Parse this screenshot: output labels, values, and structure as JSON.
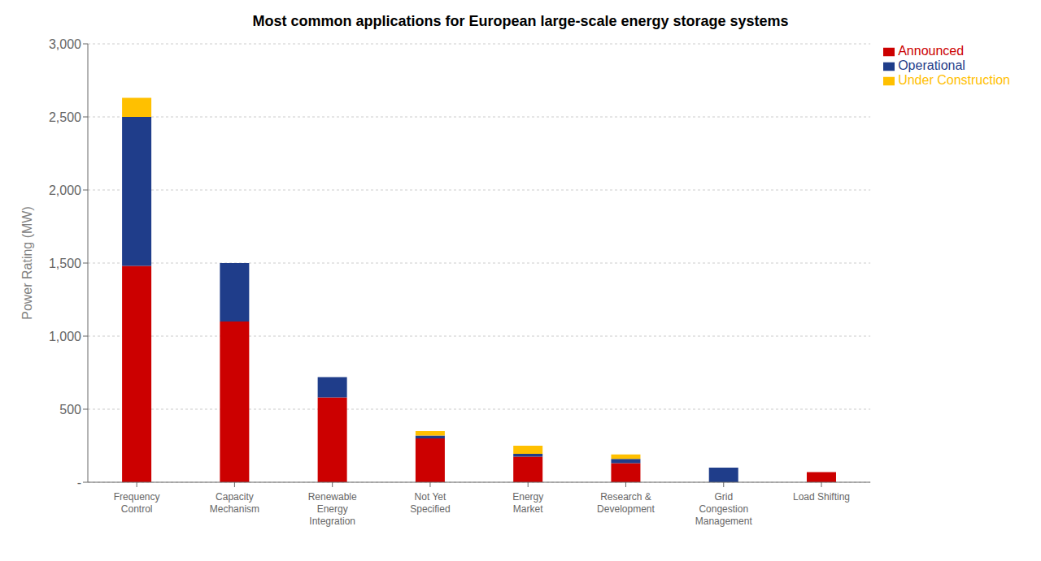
{
  "chart_data": {
    "type": "bar",
    "title": "Most common applications for European large-scale energy storage systems",
    "ylabel": "Power Rating (MW)",
    "categories": [
      "Frequency\nControl",
      "Capacity\nMechanism",
      "Renewable\nEnergy\nIntegration",
      "Not Yet\nSpecified",
      "Energy\nMarket",
      "Research &\nDevelopment",
      "Grid\nCongestion\nManagement",
      "Load Shifting"
    ],
    "series": [
      {
        "name": "Announced",
        "color": "#cc0000",
        "values": [
          1480,
          1100,
          580,
          300,
          175,
          130,
          0,
          70
        ]
      },
      {
        "name": "Operational",
        "color": "#1f3d8a",
        "values": [
          1020,
          400,
          140,
          20,
          20,
          30,
          100,
          0
        ]
      },
      {
        "name": "Under Construction",
        "color": "#ffc000",
        "values": [
          130,
          0,
          0,
          30,
          55,
          30,
          0,
          0
        ]
      }
    ],
    "stacked": true,
    "ylim": [
      0,
      3000
    ],
    "yticks": [
      {
        "value": 0,
        "label": "-"
      },
      500,
      {
        "value": 1000,
        "label": "1,000"
      },
      {
        "value": 1500,
        "label": "1,500"
      },
      {
        "value": 2000,
        "label": "2,000"
      },
      {
        "value": 2500,
        "label": "2,500"
      },
      {
        "value": 3000,
        "label": "3,000"
      }
    ],
    "grid": true,
    "legend": "upper right"
  }
}
